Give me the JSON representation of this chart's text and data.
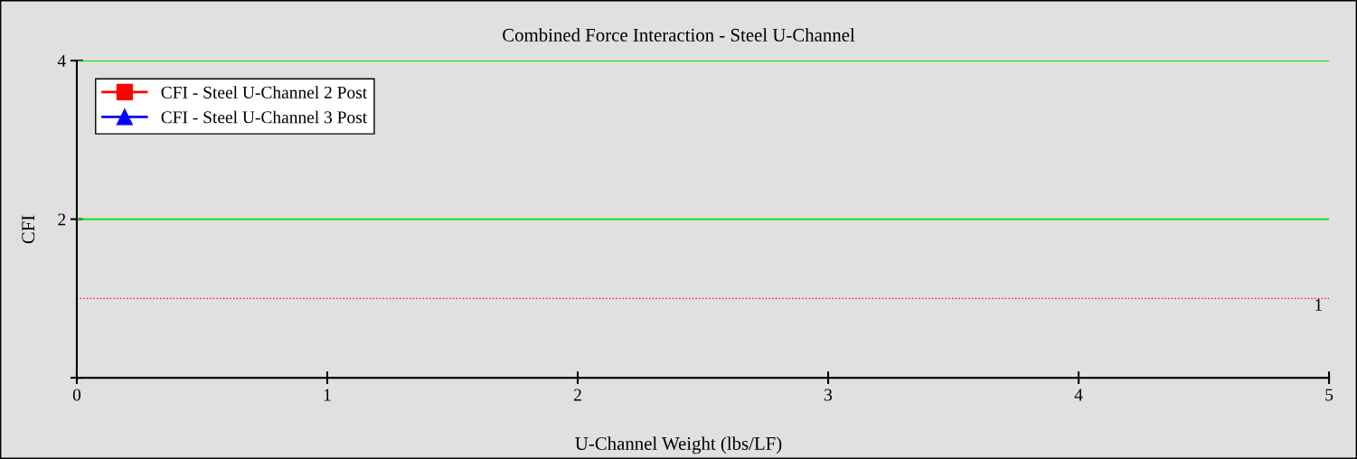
{
  "chart_data": {
    "type": "line",
    "title": "Combined Force Interaction - Steel U-Channel",
    "xlabel": "U-Channel Weight (lbs/LF)",
    "ylabel": "CFI",
    "series": [
      {
        "name": "CFI - Steel U-Channel 2 Post",
        "color": "#ff0000",
        "marker": "square",
        "values": [
          null,
          null,
          null,
          null,
          null,
          null
        ]
      },
      {
        "name": "CFI - Steel U-Channel 3 Post",
        "color": "#0000ff",
        "marker": "triangle",
        "values": [
          null,
          null,
          null,
          null,
          null,
          null
        ]
      }
    ],
    "categories": [
      "0",
      "1",
      "2",
      "3",
      "4",
      "5"
    ],
    "ylim": [
      0,
      4
    ],
    "yticks": [
      {
        "value": 0,
        "label": null
      },
      2,
      4
    ],
    "legend": "top left",
    "ref_lines": [
      {
        "axis": "y",
        "value": 1,
        "label": "1",
        "color": "#ff0000",
        "line_style": "dotted"
      },
      {
        "axis": "y",
        "value": 2,
        "color": "#00dd00",
        "line_style": "solid"
      },
      {
        "axis": "y",
        "value": 4,
        "color": "#00dd00",
        "line_style": "solid"
      }
    ]
  }
}
